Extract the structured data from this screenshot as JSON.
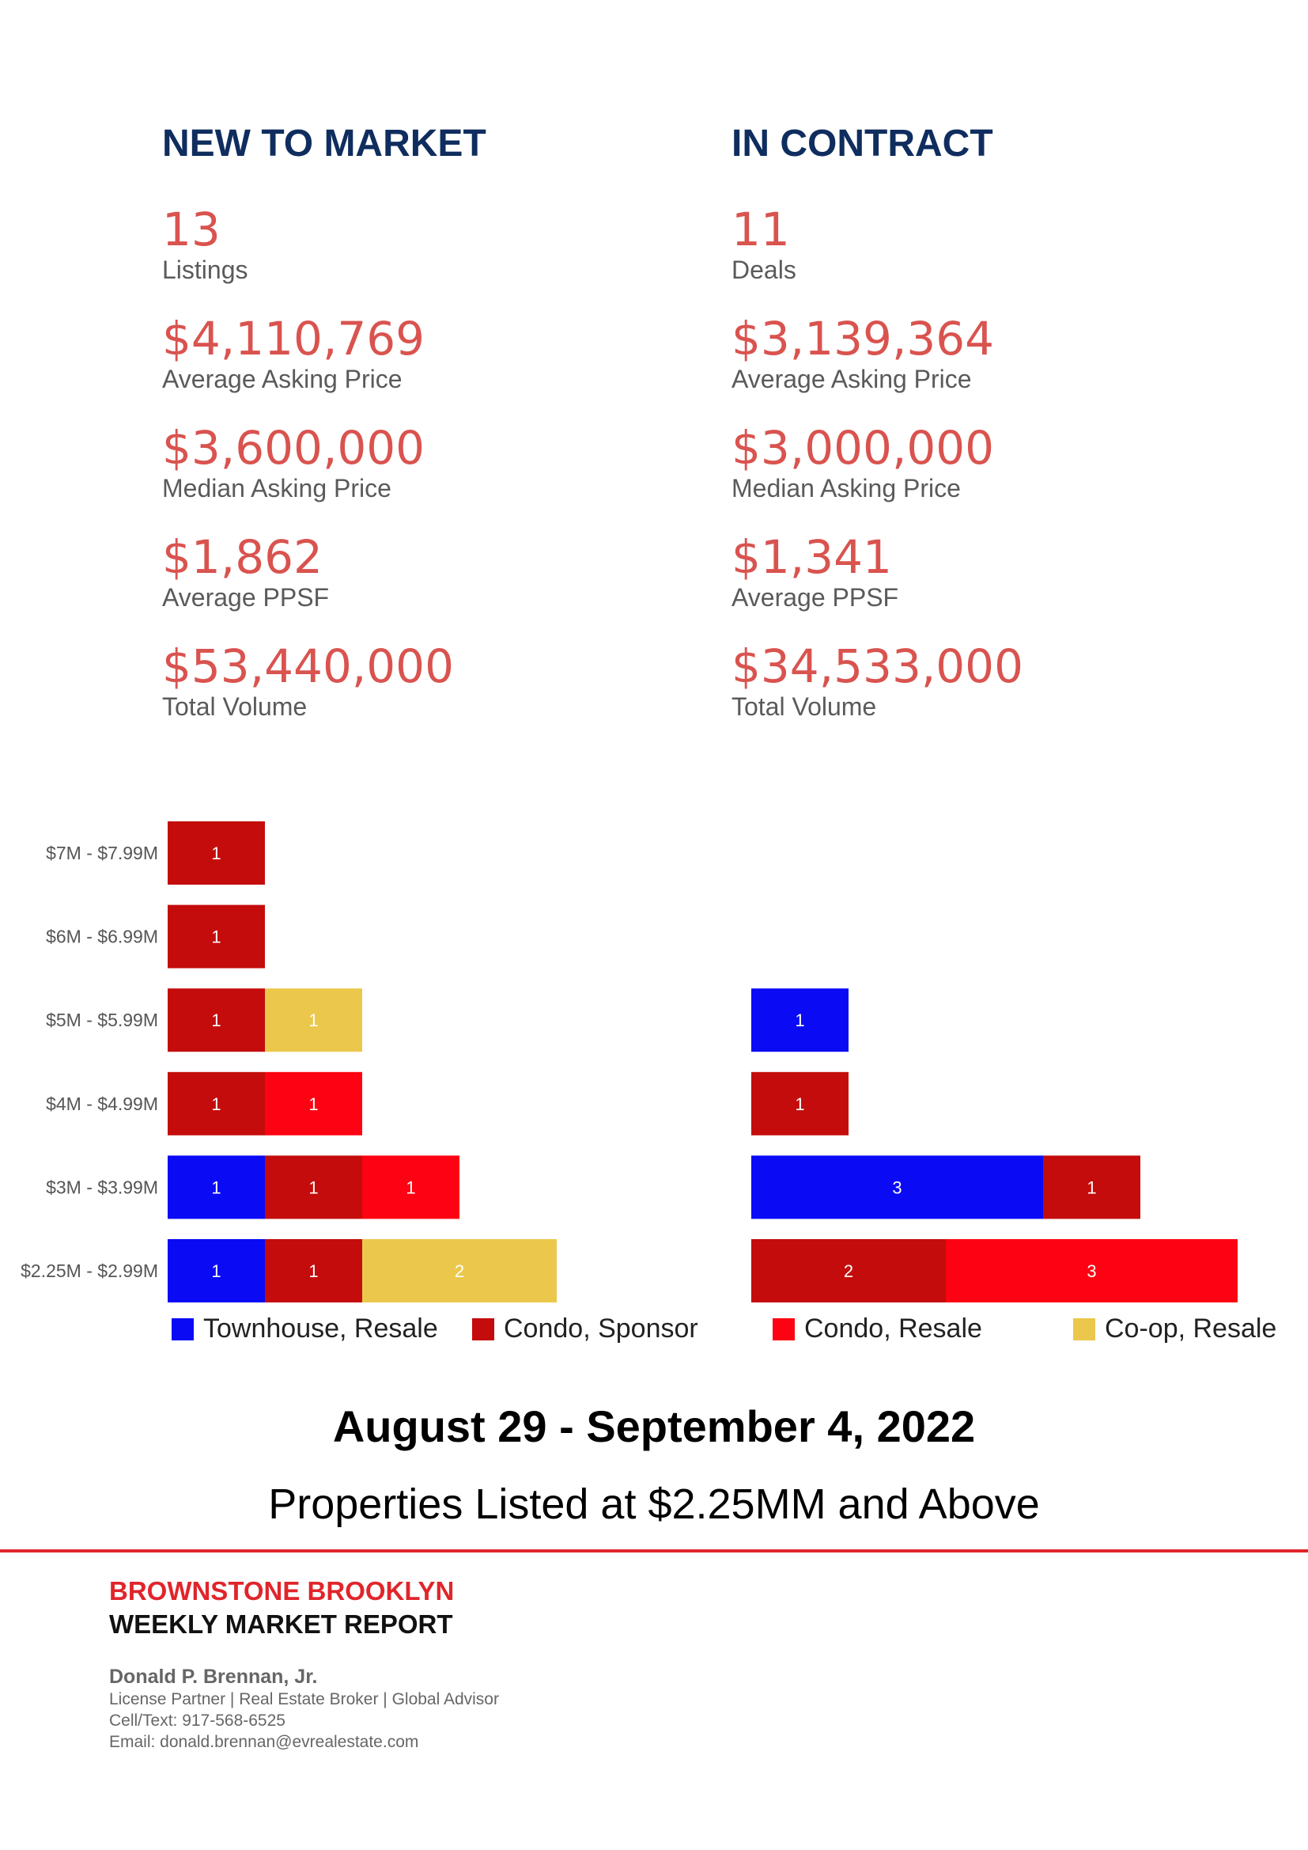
{
  "new_to_market": {
    "title": "NEW TO MARKET",
    "stats": [
      {
        "value": "13",
        "label": "Listings"
      },
      {
        "value": "$4,110,769",
        "label": "Average Asking Price"
      },
      {
        "value": "$3,600,000",
        "label": "Median Asking Price"
      },
      {
        "value": "$1,862",
        "label": "Average PPSF"
      },
      {
        "value": "$53,440,000",
        "label": "Total Volume"
      }
    ]
  },
  "in_contract": {
    "title": "IN CONTRACT",
    "stats": [
      {
        "value": "11",
        "label": "Deals"
      },
      {
        "value": "$3,139,364",
        "label": "Average Asking Price"
      },
      {
        "value": "$3,000,000",
        "label": "Median Asking Price"
      },
      {
        "value": "$1,341",
        "label": "Average PPSF"
      },
      {
        "value": "$34,533,000",
        "label": "Total Volume"
      }
    ]
  },
  "legend": [
    {
      "label": "Townhouse, Resale",
      "color": "#0a0af5"
    },
    {
      "label": "Condo, Sponsor",
      "color": "#c40c0c"
    },
    {
      "label": "Condo, Resale",
      "color": "#fd0212"
    },
    {
      "label": "Co-op, Resale",
      "color": "#ebc84b"
    }
  ],
  "chart_data": [
    {
      "type": "bar",
      "orientation": "horizontal",
      "stacked": true,
      "panel": "New to Market",
      "categories": [
        "$7M - $7.99M",
        "$6M - $6.99M",
        "$5M - $5.99M",
        "$4M - $4.99M",
        "$3M - $3.99M",
        "$2.25M - $2.99M"
      ],
      "series": [
        {
          "name": "Townhouse, Resale",
          "values": [
            0,
            0,
            0,
            0,
            1,
            1
          ]
        },
        {
          "name": "Condo, Sponsor",
          "values": [
            1,
            1,
            1,
            1,
            1,
            1
          ]
        },
        {
          "name": "Condo, Resale",
          "values": [
            0,
            0,
            0,
            1,
            1,
            0
          ]
        },
        {
          "name": "Co-op, Resale",
          "values": [
            0,
            0,
            1,
            0,
            0,
            2
          ]
        }
      ]
    },
    {
      "type": "bar",
      "orientation": "horizontal",
      "stacked": true,
      "panel": "In Contract",
      "categories": [
        "$7M - $7.99M",
        "$6M - $6.99M",
        "$5M - $5.99M",
        "$4M - $4.99M",
        "$3M - $3.99M",
        "$2.25M - $2.99M"
      ],
      "series": [
        {
          "name": "Townhouse, Resale",
          "values": [
            0,
            0,
            1,
            0,
            3,
            0
          ]
        },
        {
          "name": "Condo, Sponsor",
          "values": [
            0,
            0,
            0,
            1,
            1,
            2
          ]
        },
        {
          "name": "Condo, Resale",
          "values": [
            0,
            0,
            0,
            0,
            0,
            3
          ]
        },
        {
          "name": "Co-op, Resale",
          "values": [
            0,
            0,
            0,
            0,
            0,
            0
          ]
        }
      ]
    }
  ],
  "date_range": "August 29 - September 4, 2022",
  "subtitle": "Properties Listed at $2.25MM and Above",
  "footer": {
    "brand": "BROWNSTONE BROOKLYN",
    "report": "WEEKLY MARKET REPORT",
    "agent_name": "Donald P. Brennan, Jr.",
    "agent_title": "License Partner | Real Estate Broker | Global Advisor",
    "phone": "Cell/Text: 917-568-6525",
    "email": "Email: donald.brennan@evrealestate.com"
  }
}
